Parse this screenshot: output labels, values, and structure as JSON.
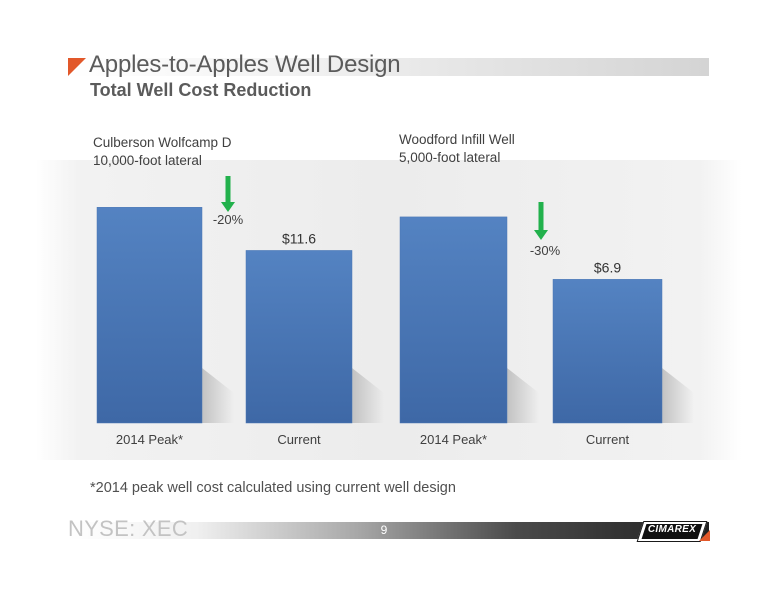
{
  "title": "Apples-to-Apples Well Design",
  "subtitle": "Total Well Cost Reduction",
  "footnote": "*2014 peak well cost calculated using current well design",
  "footer": {
    "ticker": "NYSE: XEC",
    "page_number": "9",
    "logo_text": "CIMAREX"
  },
  "colors": {
    "bar": "#4a76b4",
    "arrow": "#22b14c",
    "accent": "#e2582a"
  },
  "chart_data": [
    {
      "type": "bar",
      "title": "Culberson Wolfcamp D",
      "subtitle": "10,000-foot lateral",
      "categories": [
        "2014 Peak*",
        "Current"
      ],
      "values": [
        14.5,
        11.6
      ],
      "data_labels": [
        "",
        "$11.6"
      ],
      "change_label": "-20%",
      "ylim": [
        0,
        16
      ]
    },
    {
      "type": "bar",
      "title": "Woodford Infill Well",
      "subtitle": "5,000-foot lateral",
      "categories": [
        "2014 Peak*",
        "Current"
      ],
      "values": [
        9.9,
        6.9
      ],
      "data_labels": [
        "",
        "$6.9"
      ],
      "change_label": "-30%",
      "ylim": [
        0,
        11
      ]
    }
  ]
}
